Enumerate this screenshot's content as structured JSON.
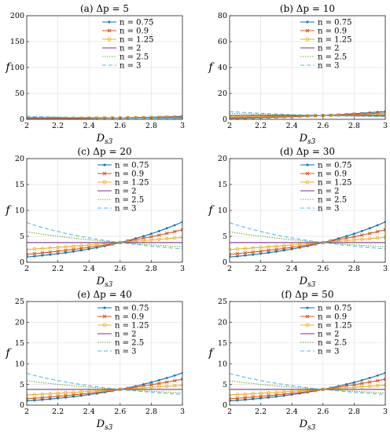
{
  "figure": {
    "panels_meta": "6 subplots, shared x label D_s3, y label f",
    "ylabel": "f",
    "xlabel": "D",
    "xlabel_sub": "s3",
    "legend_labels": [
      "n = 0.75",
      "n = 0.9",
      "n = 1.25",
      "n = 2",
      "n = 2.5",
      "n = 3"
    ],
    "colors": {
      "n075": "#0072BD",
      "n09": "#D95319",
      "n125": "#EDB120",
      "n2": "#7E2F8E",
      "n25": "#77AC30",
      "n3": "#4DBEEE"
    }
  },
  "chart_data": [
    {
      "type": "line",
      "title": "(a) Δp = 5",
      "xlabel": "D_s3",
      "ylabel": "f",
      "xlim": [
        2,
        3
      ],
      "ylim": [
        0,
        200
      ],
      "xticks": [
        "2",
        "2.2",
        "2.4",
        "2.6",
        "2.8",
        "3"
      ],
      "yticks": [
        "0",
        "50",
        "100",
        "150",
        "200"
      ],
      "legend": "top-left-inner",
      "grid": true,
      "series": [
        {
          "name": "n = 0.75",
          "exp": -5.0,
          "a": 2.85
        },
        {
          "name": "n = 0.9",
          "exp": -3.5,
          "a": 2.85
        },
        {
          "name": "n = 1.25",
          "exp": -1.667,
          "a": 2.85
        },
        {
          "name": "n = 2",
          "exp": 0,
          "a": 2.85
        },
        {
          "name": "n = 2.5",
          "exp": 0.5,
          "a": 2.85
        },
        {
          "name": "n = 3",
          "exp": 0.8,
          "a": 2.85
        }
      ]
    },
    {
      "type": "line",
      "title": "(b) Δp = 10",
      "xlabel": "D_s3",
      "ylabel": "f",
      "xlim": [
        2,
        3
      ],
      "ylim": [
        0,
        80
      ],
      "xticks": [
        "2",
        "2.2",
        "2.4",
        "2.6",
        "2.8",
        "3"
      ],
      "yticks": [
        "0",
        "20",
        "40",
        "60",
        "80"
      ],
      "legend": "top-right",
      "grid": true,
      "series": [
        {
          "name": "n = 0.75",
          "exp": -5.0,
          "a": 3.0
        },
        {
          "name": "n = 0.9",
          "exp": -3.5,
          "a": 3.0
        },
        {
          "name": "n = 1.25",
          "exp": -1.667,
          "a": 3.0
        },
        {
          "name": "n = 2",
          "exp": 0,
          "a": 3.0
        },
        {
          "name": "n = 2.5",
          "exp": 0.5,
          "a": 3.0
        },
        {
          "name": "n = 3",
          "exp": 0.8,
          "a": 3.0
        }
      ]
    },
    {
      "type": "line",
      "title": "(c) Δp = 20",
      "xlabel": "D_s3",
      "ylabel": "f",
      "xlim": [
        2,
        3
      ],
      "ylim": [
        0,
        20
      ],
      "xticks": [
        "2",
        "2.2",
        "2.4",
        "2.6",
        "2.8",
        "3"
      ],
      "yticks": [
        "0",
        "5",
        "10",
        "15",
        "20"
      ],
      "legend": "top-right",
      "grid": true,
      "series": [
        {
          "name": "n = 0.75",
          "exp": -5.0,
          "a": 3.8
        },
        {
          "name": "n = 0.9",
          "exp": -3.5,
          "a": 3.8
        },
        {
          "name": "n = 1.25",
          "exp": -1.667,
          "a": 3.8
        },
        {
          "name": "n = 2",
          "exp": 0,
          "a": 3.8
        },
        {
          "name": "n = 2.5",
          "exp": 0.5,
          "a": 3.8
        },
        {
          "name": "n = 3",
          "exp": 0.8,
          "a": 3.8
        }
      ]
    },
    {
      "type": "line",
      "title": "(d) Δp = 30",
      "xlabel": "D_s3",
      "ylabel": "f",
      "xlim": [
        2,
        3
      ],
      "ylim": [
        0,
        20
      ],
      "xticks": [
        "2",
        "2.2",
        "2.4",
        "2.6",
        "2.8",
        "3"
      ],
      "yticks": [
        "0",
        "5",
        "10",
        "15",
        "20"
      ],
      "legend": "top-right",
      "grid": true,
      "series": [
        {
          "name": "n = 0.75",
          "exp": -5.0,
          "a": 3.8
        },
        {
          "name": "n = 0.9",
          "exp": -3.5,
          "a": 3.8
        },
        {
          "name": "n = 1.25",
          "exp": -1.667,
          "a": 3.8
        },
        {
          "name": "n = 2",
          "exp": 0,
          "a": 3.8
        },
        {
          "name": "n = 2.5",
          "exp": 0.5,
          "a": 3.8
        },
        {
          "name": "n = 3",
          "exp": 0.8,
          "a": 3.8
        }
      ]
    },
    {
      "type": "line",
      "title": "(e) Δp = 40",
      "xlabel": "D_s3",
      "ylabel": "f",
      "xlim": [
        2,
        3
      ],
      "ylim": [
        0,
        25
      ],
      "xticks": [
        "2",
        "2.2",
        "2.4",
        "2.6",
        "2.8",
        "3"
      ],
      "yticks": [
        "0",
        "5",
        "10",
        "15",
        "20",
        "25"
      ],
      "legend": "top-right",
      "grid": true,
      "series": [
        {
          "name": "n = 0.75",
          "exp": -5.0,
          "a": 3.8
        },
        {
          "name": "n = 0.9",
          "exp": -3.5,
          "a": 3.8
        },
        {
          "name": "n = 1.25",
          "exp": -1.667,
          "a": 3.8
        },
        {
          "name": "n = 2",
          "exp": 0,
          "a": 3.8
        },
        {
          "name": "n = 2.5",
          "exp": 0.5,
          "a": 3.8
        },
        {
          "name": "n = 3",
          "exp": 0.8,
          "a": 3.8
        }
      ]
    },
    {
      "type": "line",
      "title": "(f) Δp = 50",
      "xlabel": "D_s3",
      "ylabel": "f",
      "xlim": [
        2,
        3
      ],
      "ylim": [
        0,
        25
      ],
      "xticks": [
        "2",
        "2.2",
        "2.4",
        "2.6",
        "2.8",
        "3"
      ],
      "yticks": [
        "0",
        "5",
        "10",
        "15",
        "20",
        "25"
      ],
      "legend": "top-right",
      "grid": true,
      "series": [
        {
          "name": "n = 0.75",
          "exp": -5.0,
          "a": 3.8
        },
        {
          "name": "n = 0.9",
          "exp": -3.5,
          "a": 3.8
        },
        {
          "name": "n = 1.25",
          "exp": -1.667,
          "a": 3.8
        },
        {
          "name": "n = 2",
          "exp": 0,
          "a": 3.8
        },
        {
          "name": "n = 2.5",
          "exp": 0.5,
          "a": 3.8
        },
        {
          "name": "n = 3",
          "exp": 0.8,
          "a": 3.8
        }
      ]
    }
  ]
}
